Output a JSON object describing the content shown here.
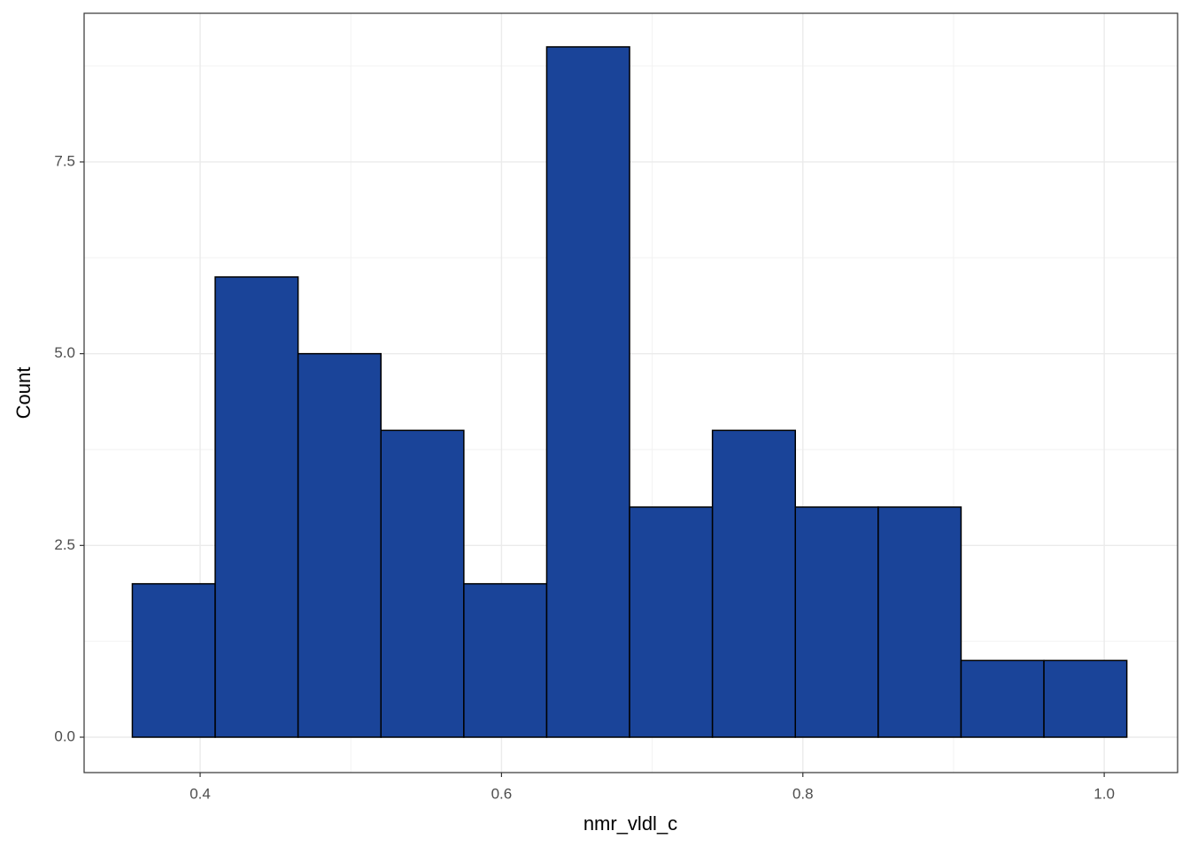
{
  "chart_data": {
    "type": "histogram",
    "x_label": "nmr_vldl_c",
    "y_label": "Count",
    "bins": [
      0.355,
      0.41,
      0.465,
      0.52,
      0.575,
      0.63,
      0.685,
      0.74,
      0.795,
      0.85,
      0.905,
      0.96,
      1.015
    ],
    "values": [
      2,
      6,
      5,
      4,
      2,
      9,
      3,
      4,
      3,
      3,
      1,
      1
    ],
    "color": "#1a4499",
    "edge_color": "#000000",
    "xlim": [
      0.323,
      1.0487
    ],
    "ylim": [
      -0.4615,
      9.438
    ],
    "xticks": [
      0.4,
      0.6,
      0.8,
      {
        "value": 1.0,
        "label": "1.0"
      }
    ],
    "yticks": [
      {
        "value": 0,
        "label": "0.0"
      },
      2.5,
      {
        "value": 5,
        "label": "5.0"
      },
      7.5
    ],
    "grid": true
  }
}
